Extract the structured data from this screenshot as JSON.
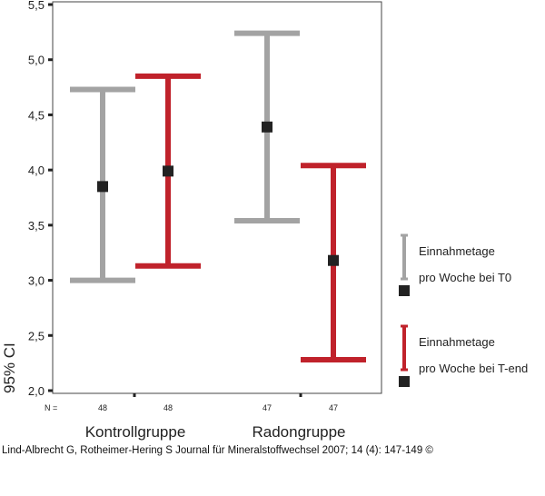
{
  "chart_data": {
    "type": "errorbar",
    "title": "",
    "xlabel": "",
    "ylabel": "95% CI",
    "ylim": [
      2.0,
      5.5
    ],
    "y_ticks": [
      "2,0",
      "2,5",
      "3,0",
      "3,5",
      "4,0",
      "4,5",
      "5,0",
      "5,5"
    ],
    "y_tick_values": [
      2.0,
      2.5,
      3.0,
      3.5,
      4.0,
      4.5,
      5.0,
      5.5
    ],
    "categories": [
      "Kontrollgruppe",
      "Radongruppe"
    ],
    "n_label": "N =",
    "series": [
      {
        "name": "Einnahmetage pro Woche bei T0",
        "legend_lines": [
          "Einnahmetage",
          "pro Woche bei T0"
        ],
        "color": "#a3a3a3",
        "points": [
          {
            "category": "Kontrollgruppe",
            "mean": 3.85,
            "lower": 3.0,
            "upper": 4.73,
            "n": "48"
          },
          {
            "category": "Radongruppe",
            "mean": 4.39,
            "lower": 3.54,
            "upper": 5.24,
            "n": "47"
          }
        ]
      },
      {
        "name": "Einnahmetage pro Woche bei T-end",
        "legend_lines": [
          "Einnahmetage",
          "pro Woche bei T-end"
        ],
        "color": "#c0222b",
        "points": [
          {
            "category": "Kontrollgruppe",
            "mean": 3.99,
            "lower": 3.13,
            "upper": 4.85,
            "n": "48"
          },
          {
            "category": "Radongruppe",
            "mean": 3.18,
            "lower": 2.28,
            "upper": 4.04,
            "n": "47"
          }
        ]
      }
    ],
    "grid": false,
    "legend_position": "right",
    "marker_color": "#222222"
  },
  "source_caption": "Lind-Albrecht G, Rotheimer-Hering S Journal für Mineralstoffwechsel 2007; 14 (4): 147-149 ©"
}
